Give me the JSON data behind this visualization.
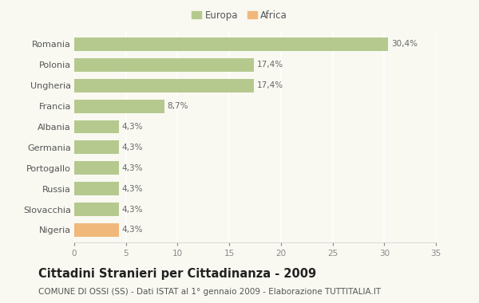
{
  "categories": [
    "Romania",
    "Polonia",
    "Ungheria",
    "Francia",
    "Albania",
    "Germania",
    "Portogallo",
    "Russia",
    "Slovacchia",
    "Nigeria"
  ],
  "values": [
    30.4,
    17.4,
    17.4,
    8.7,
    4.3,
    4.3,
    4.3,
    4.3,
    4.3,
    4.3
  ],
  "labels": [
    "30,4%",
    "17,4%",
    "17,4%",
    "8,7%",
    "4,3%",
    "4,3%",
    "4,3%",
    "4,3%",
    "4,3%",
    "4,3%"
  ],
  "colors": [
    "#b5c98e",
    "#b5c98e",
    "#b5c98e",
    "#b5c98e",
    "#b5c98e",
    "#b5c98e",
    "#b5c98e",
    "#b5c98e",
    "#b5c98e",
    "#f0b87a"
  ],
  "europa_color": "#b5c98e",
  "africa_color": "#f0b87a",
  "xlim": [
    0,
    35
  ],
  "xticks": [
    0,
    5,
    10,
    15,
    20,
    25,
    30,
    35
  ],
  "title": "Cittadini Stranieri per Cittadinanza - 2009",
  "subtitle": "COMUNE DI OSSI (SS) - Dati ISTAT al 1° gennaio 2009 - Elaborazione TUTTITALIA.IT",
  "background_color": "#f9f9f2",
  "grid_color": "#ffffff",
  "bar_height": 0.65,
  "label_fontsize": 7.5,
  "title_fontsize": 10.5,
  "subtitle_fontsize": 7.5,
  "ytick_fontsize": 8,
  "xtick_fontsize": 7.5,
  "legend_fontsize": 8.5
}
